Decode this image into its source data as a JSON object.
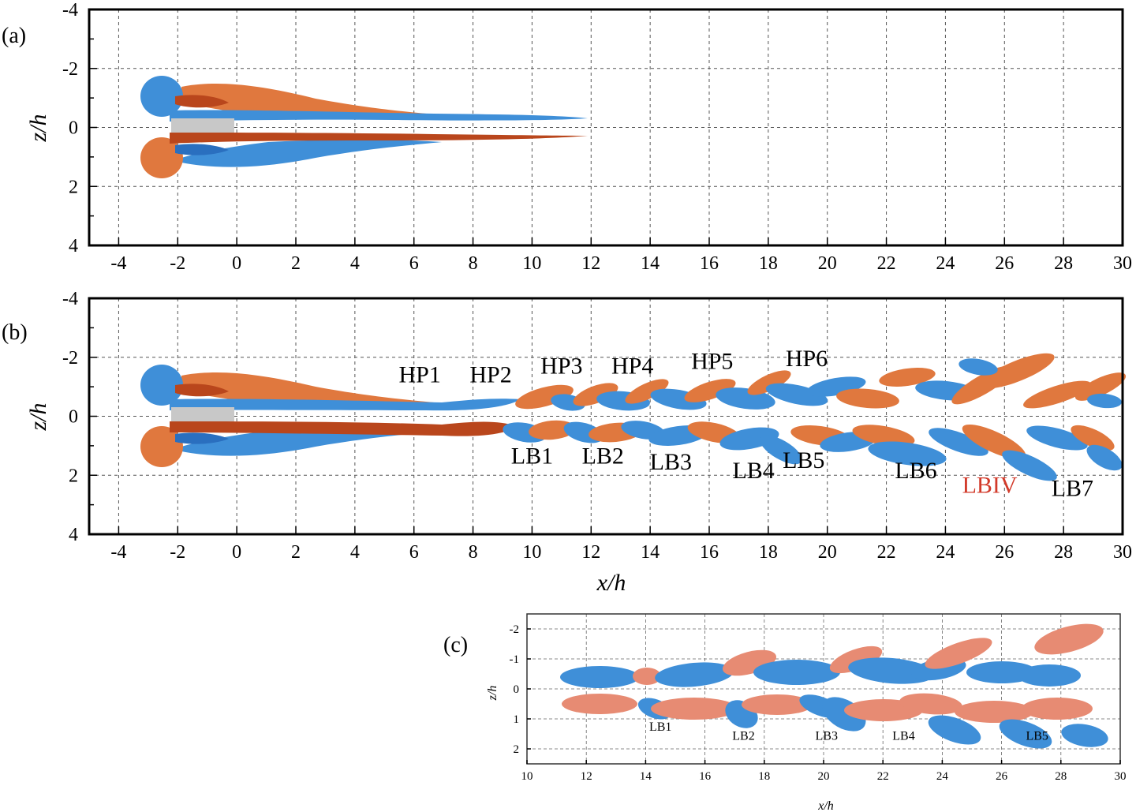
{
  "figure": {
    "panels": [
      {
        "id": "a",
        "panel_label": "(a)",
        "x_ticks": [
          "-4",
          "-2",
          "0",
          "2",
          "4",
          "6",
          "8",
          "10",
          "12",
          "14",
          "16",
          "18",
          "20",
          "22",
          "24",
          "26",
          "28",
          "30"
        ],
        "z_ticks": [
          "-4",
          "-2",
          "0",
          "2",
          "4"
        ],
        "ylabel": "z/h",
        "structure_labels": []
      },
      {
        "id": "b",
        "panel_label": "(b)",
        "x_ticks": [
          "-4",
          "-2",
          "0",
          "2",
          "4",
          "6",
          "8",
          "10",
          "12",
          "14",
          "16",
          "18",
          "20",
          "22",
          "24",
          "26",
          "28",
          "30"
        ],
        "z_ticks": [
          "-4",
          "-2",
          "0",
          "2",
          "4"
        ],
        "xlabel": "x/h",
        "ylabel": "z/h",
        "structure_labels": [
          {
            "text": "HP1",
            "x": 6.2,
            "z": -1.15,
            "color": "#000000"
          },
          {
            "text": "HP2",
            "x": 8.6,
            "z": -1.15,
            "color": "#000000"
          },
          {
            "text": "HP3",
            "x": 11.0,
            "z": -1.45,
            "color": "#000000"
          },
          {
            "text": "HP4",
            "x": 13.4,
            "z": -1.45,
            "color": "#000000"
          },
          {
            "text": "HP5",
            "x": 16.1,
            "z": -1.6,
            "color": "#000000"
          },
          {
            "text": "HP6",
            "x": 19.3,
            "z": -1.7,
            "color": "#000000"
          },
          {
            "text": "LB1",
            "x": 10.0,
            "z": 1.6,
            "color": "#000000"
          },
          {
            "text": "LB2",
            "x": 12.4,
            "z": 1.6,
            "color": "#000000"
          },
          {
            "text": "LB3",
            "x": 14.7,
            "z": 1.8,
            "color": "#000000"
          },
          {
            "text": "LB4",
            "x": 17.5,
            "z": 2.1,
            "color": "#000000"
          },
          {
            "text": "LB5",
            "x": 19.2,
            "z": 1.75,
            "color": "#000000"
          },
          {
            "text": "LB6",
            "x": 23.0,
            "z": 2.1,
            "color": "#000000"
          },
          {
            "text": "LBIV",
            "x": 25.5,
            "z": 2.6,
            "color": "#d23a2a"
          },
          {
            "text": "LB7",
            "x": 28.3,
            "z": 2.7,
            "color": "#000000"
          }
        ]
      },
      {
        "id": "c",
        "panel_label": "(c)",
        "x_ticks": [
          "10",
          "12",
          "14",
          "16",
          "18",
          "20",
          "22",
          "24",
          "26",
          "28",
          "30"
        ],
        "z_ticks": [
          "-2",
          "-1",
          "0",
          "1",
          "2"
        ],
        "xlabel": "x/h",
        "ylabel": "z/h",
        "structure_labels": [
          {
            "text": "LB1",
            "x": 14.5,
            "z": 1.4,
            "color": "#000000"
          },
          {
            "text": "LB2",
            "x": 17.3,
            "z": 1.7,
            "color": "#000000"
          },
          {
            "text": "LB3",
            "x": 20.1,
            "z": 1.7,
            "color": "#000000"
          },
          {
            "text": "LB4",
            "x": 22.7,
            "z": 1.7,
            "color": "#000000"
          },
          {
            "text": "LB5",
            "x": 27.2,
            "z": 1.7,
            "color": "#000000"
          }
        ]
      }
    ],
    "colors": {
      "positive_vorticity": "#e0783e",
      "negative_vorticity": "#3f8fd8",
      "body": "#c8c8c8"
    }
  }
}
